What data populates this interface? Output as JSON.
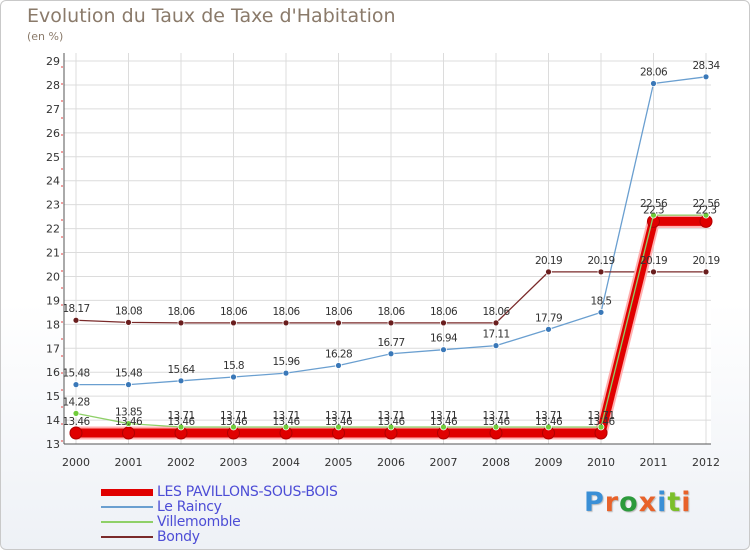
{
  "title": "Evolution du Taux de Taxe d'Habitation",
  "subtitle": "(en %)",
  "logo_text": "Proxiti",
  "logo_colors": [
    "#3a8fd6",
    "#e8622a",
    "#2c9a3c",
    "#e8622a",
    "#3a8fd6",
    "#7bbf2a",
    "#e8622a"
  ],
  "chart_data": {
    "type": "line",
    "title": "Evolution du Taux de Taxe d'Habitation",
    "ylabel": "(en %)",
    "xlabel": "",
    "ylim": [
      13,
      29
    ],
    "yticks": [
      13,
      14,
      15,
      16,
      17,
      18,
      19,
      20,
      21,
      22,
      23,
      24,
      25,
      26,
      27,
      28,
      29
    ],
    "x": [
      "2000",
      "2001",
      "2002",
      "2003",
      "2004",
      "2005",
      "2006",
      "2007",
      "2008",
      "2009",
      "2010",
      "2011",
      "2012"
    ],
    "grid": true,
    "legend_position": "bottom-left",
    "series": [
      {
        "name": "LES PAVILLONS-SOUS-BOIS",
        "color": "#e00000",
        "values": [
          13.46,
          13.46,
          13.46,
          13.46,
          13.46,
          13.46,
          13.46,
          13.46,
          13.46,
          13.46,
          13.46,
          22.3,
          22.3
        ],
        "labels": [
          "13.46",
          "13.46",
          "13.46",
          "13.46",
          "13.46",
          "13.46",
          "13.46",
          "13.46",
          "13.46",
          "13.46",
          "13.46",
          "22.3",
          "22.3"
        ]
      },
      {
        "name": "Le Raincy",
        "color": "#6a9fd0",
        "values": [
          15.48,
          15.48,
          15.64,
          15.8,
          15.96,
          16.28,
          16.77,
          16.94,
          17.11,
          17.79,
          18.5,
          28.06,
          28.34
        ],
        "labels": [
          "15.48",
          "15.48",
          "15.64",
          "15.8",
          "15.96",
          "16.28",
          "16.77",
          "16.94",
          "17.11",
          "17.79",
          "18.5",
          "28.06",
          "28.34"
        ]
      },
      {
        "name": "Villemomble",
        "color": "#8fd068",
        "values": [
          14.28,
          13.85,
          13.71,
          13.71,
          13.71,
          13.71,
          13.71,
          13.71,
          13.71,
          13.71,
          13.71,
          22.56,
          22.56
        ],
        "labels": [
          "14.28",
          "13.85",
          "13.71",
          "13.71",
          "13.71",
          "13.71",
          "13.71",
          "13.71",
          "13.71",
          "13.71",
          "13.71",
          "22.56",
          "22.56"
        ]
      },
      {
        "name": "Bondy",
        "color": "#7a2a2a",
        "values": [
          18.17,
          18.08,
          18.06,
          18.06,
          18.06,
          18.06,
          18.06,
          18.06,
          18.06,
          20.19,
          20.19,
          20.19,
          20.19
        ],
        "labels": [
          "18.17",
          "18.08",
          "18.06",
          "18.06",
          "18.06",
          "18.06",
          "18.06",
          "18.06",
          "18.06",
          "20.19",
          "20.19",
          "20.19",
          "20.19"
        ]
      }
    ]
  }
}
